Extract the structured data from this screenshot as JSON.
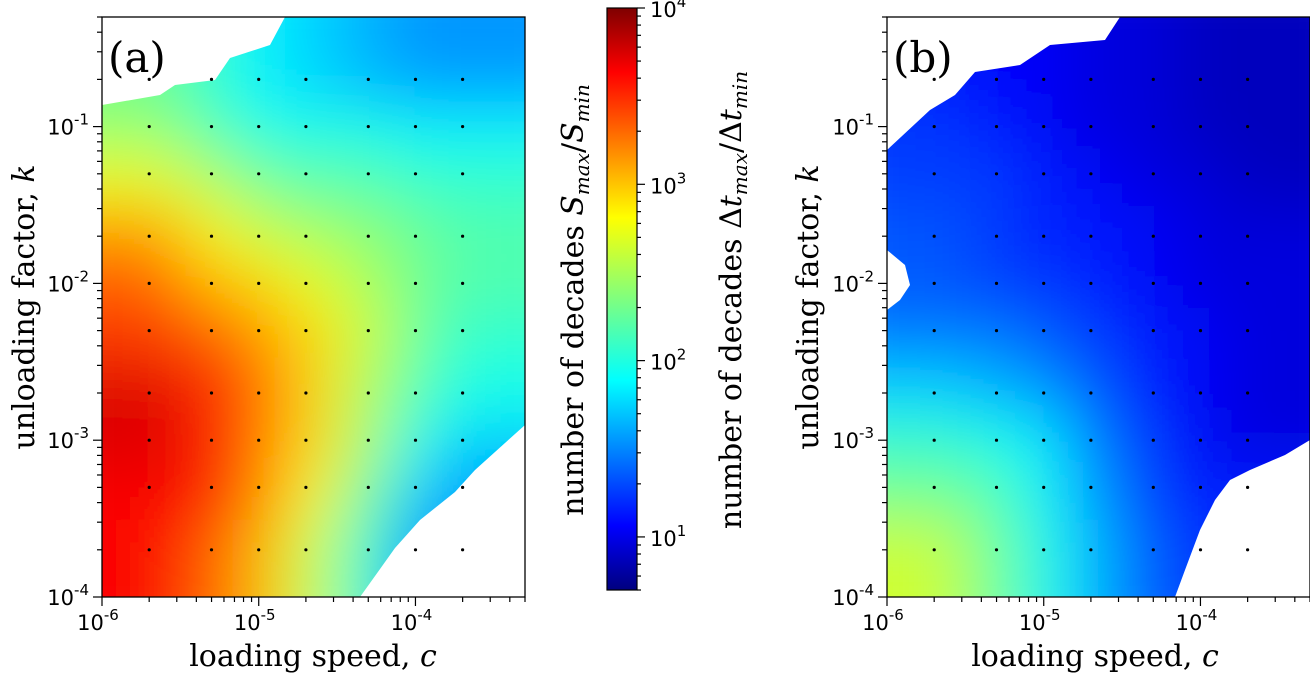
{
  "chart_data": [
    {
      "type": "heatmap",
      "panel_label": "(a)",
      "xlabel": "loading speed, c",
      "ylabel": "unloading factor, k",
      "xscale": "log",
      "yscale": "log",
      "xlim": [
        1e-06,
        0.0005
      ],
      "ylim": [
        0.0001,
        0.5
      ],
      "xticks": [
        "10-6",
        "10-5",
        "10-4"
      ],
      "yticks": [
        "10-4",
        "10-3",
        "10-2",
        "10-1"
      ],
      "x": [
        2e-06,
        5e-06,
        1e-05,
        2e-05,
        5e-05,
        0.0001,
        0.0002
      ],
      "y": [
        0.0002,
        0.0005,
        0.001,
        0.002,
        0.005,
        0.01,
        0.02,
        0.05,
        0.1,
        0.2
      ],
      "z_decades": [
        [
          3.6,
          3.3,
          3.0,
          2.6,
          2.1,
          1.6,
          null
        ],
        [
          3.6,
          3.6,
          3.2,
          2.8,
          2.3,
          1.8,
          1.6
        ],
        [
          3.7,
          3.5,
          3.2,
          2.9,
          2.5,
          2.0,
          1.8
        ],
        [
          3.7,
          3.5,
          3.3,
          2.9,
          2.5,
          2.2,
          2.0
        ],
        [
          3.4,
          3.3,
          3.1,
          2.9,
          2.6,
          2.3,
          2.1
        ],
        [
          3.3,
          3.0,
          2.9,
          2.7,
          2.5,
          2.3,
          2.2
        ],
        [
          3.1,
          2.8,
          2.6,
          2.5,
          2.4,
          2.3,
          2.2
        ],
        [
          2.7,
          2.5,
          2.3,
          2.2,
          2.2,
          2.1,
          2.1
        ],
        [
          2.4,
          2.2,
          2.0,
          2.0,
          2.0,
          1.9,
          1.9
        ],
        [
          2.3,
          2.1,
          1.9,
          1.8,
          1.7,
          1.6,
          1.6
        ]
      ]
    },
    {
      "type": "heatmap",
      "panel_label": "(b)",
      "xlabel": "loading speed, c",
      "ylabel": "unloading factor, k",
      "xscale": "log",
      "yscale": "log",
      "xlim": [
        1e-06,
        0.0005
      ],
      "ylim": [
        0.0001,
        0.5
      ],
      "xticks": [
        "10-6",
        "10-5",
        "10-4"
      ],
      "yticks": [
        "10-4",
        "10-3",
        "10-2",
        "10-1"
      ],
      "x": [
        2e-06,
        5e-06,
        1e-05,
        2e-05,
        5e-05,
        0.0001,
        0.0002
      ],
      "y": [
        0.0002,
        0.0005,
        0.001,
        0.002,
        0.005,
        0.01,
        0.02,
        0.05,
        0.1,
        0.2
      ],
      "z_decades": [
        [
          2.6,
          2.3,
          2.0,
          1.7,
          1.4,
          1.3,
          1.2
        ],
        [
          2.3,
          2.2,
          1.9,
          1.6,
          1.3,
          1.2,
          null
        ],
        [
          2.1,
          2.0,
          1.9,
          1.5,
          1.3,
          1.1,
          1.0
        ],
        [
          1.8,
          1.7,
          1.6,
          1.4,
          1.2,
          1.1,
          1.0
        ],
        [
          1.5,
          1.5,
          1.4,
          1.3,
          1.2,
          1.1,
          1.0
        ],
        [
          1.4,
          1.3,
          1.3,
          1.2,
          1.1,
          1.0,
          1.0
        ],
        [
          1.4,
          1.3,
          1.2,
          1.2,
          1.1,
          1.0,
          1.0
        ],
        [
          1.3,
          1.3,
          1.2,
          1.1,
          1.0,
          1.0,
          0.9
        ],
        [
          1.3,
          1.2,
          1.1,
          1.0,
          1.0,
          0.9,
          0.9
        ],
        [
          1.2,
          1.1,
          1.1,
          1.0,
          1.0,
          0.9,
          0.9
        ]
      ]
    }
  ],
  "colorbar": {
    "scale": "log",
    "range": [
      5,
      10000
    ],
    "ticks": [
      {
        "value": 10,
        "mantissa": "10",
        "exp": "1"
      },
      {
        "value": 100,
        "mantissa": "10",
        "exp": "2"
      },
      {
        "value": 1000,
        "mantissa": "10",
        "exp": "3"
      },
      {
        "value": 10000,
        "mantissa": "10",
        "exp": "4"
      }
    ],
    "colormap": "jet",
    "label_left": "number of decades S_max/S_min",
    "label_right": "number of decades Δt_max/Δt_min"
  }
}
